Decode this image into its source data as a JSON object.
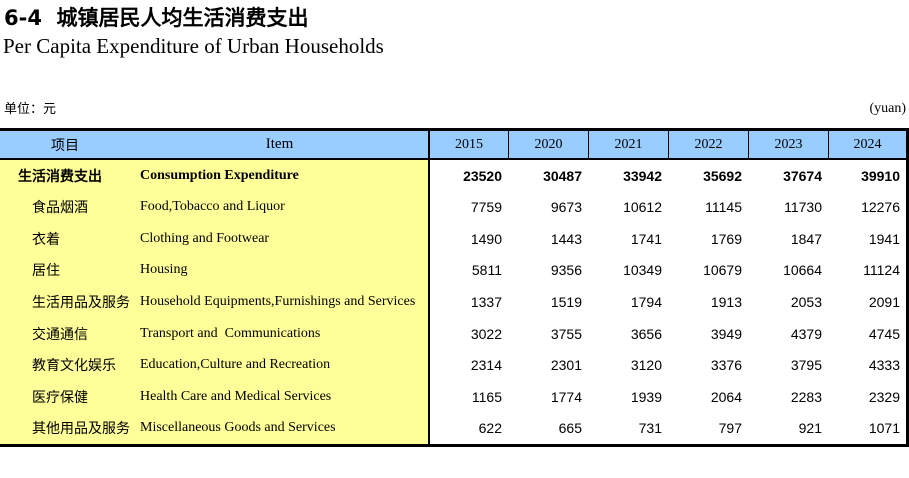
{
  "page": {
    "title_cn": "6-4  城镇居民人均生活消费支出",
    "title_en": "Per Capita Expenditure of Urban Households",
    "unit_label_cn": "单位：元",
    "unit_label_en": "(yuan)"
  },
  "colors": {
    "header_bg": "#99CCFF",
    "label_bg": "#FFFF99",
    "border": "#000000"
  },
  "table": {
    "header": {
      "col_cn": "项目",
      "col_en": "Item",
      "years": [
        "2015",
        "2020",
        "2021",
        "2022",
        "2023",
        "2024"
      ]
    },
    "rows": [
      {
        "cn": "生活消费支出",
        "en": "Consumption Expenditure",
        "values": [
          "23520",
          "30487",
          "33942",
          "35692",
          "37674",
          "39910"
        ]
      },
      {
        "cn": "食品烟酒",
        "en": "Food,Tobacco and Liquor",
        "values": [
          "7759",
          "9673",
          "10612",
          "11145",
          "11730",
          "12276"
        ]
      },
      {
        "cn": "衣着",
        "en": "Clothing and Footwear",
        "values": [
          "1490",
          "1443",
          "1741",
          "1769",
          "1847",
          "1941"
        ]
      },
      {
        "cn": "居住",
        "en": "Housing",
        "values": [
          "5811",
          "9356",
          "10349",
          "10679",
          "10664",
          "11124"
        ]
      },
      {
        "cn": "生活用品及服务",
        "en": "Household Equipments,Furnishings and Services",
        "values": [
          "1337",
          "1519",
          "1794",
          "1913",
          "2053",
          "2091"
        ]
      },
      {
        "cn": "交通通信",
        "en": "Transport and  Communications",
        "values": [
          "3022",
          "3755",
          "3656",
          "3949",
          "4379",
          "4745"
        ]
      },
      {
        "cn": "教育文化娱乐",
        "en": "Education,Culture and Recreation",
        "values": [
          "2314",
          "2301",
          "3120",
          "3376",
          "3795",
          "4333"
        ]
      },
      {
        "cn": "医疗保健",
        "en": "Health Care and Medical Services",
        "values": [
          "1165",
          "1774",
          "1939",
          "2064",
          "2283",
          "2329"
        ]
      },
      {
        "cn": "其他用品及服务",
        "en": "Miscellaneous Goods and Services",
        "values": [
          "622",
          "665",
          "731",
          "797",
          "921",
          "1071"
        ]
      }
    ]
  }
}
